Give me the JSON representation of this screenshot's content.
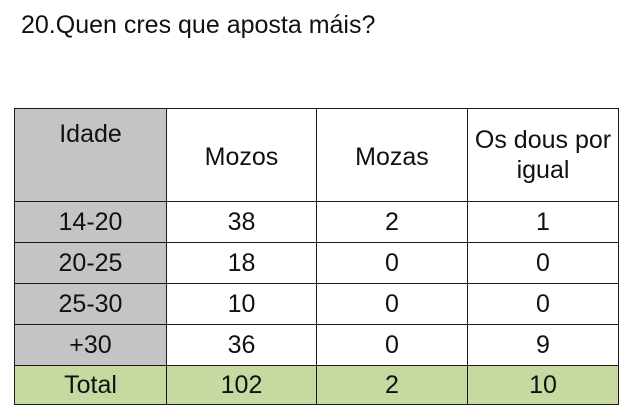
{
  "question": "20.Quen cres que aposta máis?",
  "table": {
    "headers": [
      "Idade",
      "Mozos",
      "Mozas",
      "Os dous por igual"
    ],
    "rows": [
      {
        "label": "14-20",
        "mozos": "38",
        "mozas": "2",
        "ambos": "1"
      },
      {
        "label": "20-25",
        "mozos": "18",
        "mozas": "0",
        "ambos": "0"
      },
      {
        "label": "25-30",
        "mozos": "10",
        "mozas": "0",
        "ambos": "0"
      },
      {
        "label": "+30",
        "mozos": "36",
        "mozas": "0",
        "ambos": "9"
      }
    ],
    "total": {
      "label": "Total",
      "mozos": "102",
      "mozas": "2",
      "ambos": "10"
    }
  },
  "colors": {
    "label_column_bg": "#c4c4c4",
    "total_row_bg": "#c6d9a1",
    "border": "#1a1a1a"
  }
}
